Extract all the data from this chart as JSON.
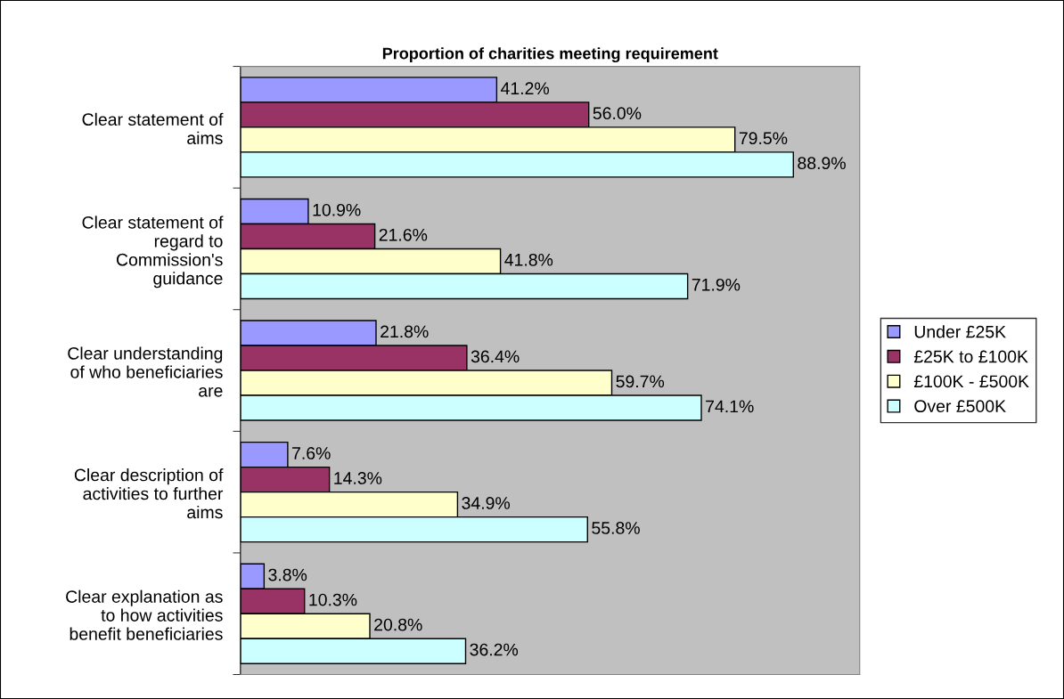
{
  "chart_data": {
    "type": "bar",
    "orientation": "horizontal",
    "title": "Proportion of charities meeting requirement",
    "categories": [
      "Clear statement of\naims",
      "Clear statement of\nregard to\nCommission's\nguidance",
      "Clear understanding\nof who beneficiaries\nare",
      "Clear description of\nactivities to further\naims",
      "Clear explanation as\nto how activities\nbenefit beneficiaries"
    ],
    "series": [
      {
        "name": "Under £25K",
        "color": "#9999ff",
        "values": [
          41.2,
          10.9,
          21.8,
          7.6,
          3.8
        ],
        "value_labels": [
          "41.2%",
          "10.9%",
          "21.8%",
          "7.6%",
          "3.8%"
        ]
      },
      {
        "name": "£25K to £100K",
        "color": "#993366",
        "values": [
          56.0,
          21.6,
          36.4,
          14.3,
          10.3
        ],
        "value_labels": [
          "56.0%",
          "21.6%",
          "36.4%",
          "14.3%",
          "10.3%"
        ]
      },
      {
        "name": "£100K - £500K",
        "color": "#ffffcc",
        "values": [
          79.5,
          41.8,
          59.7,
          34.9,
          20.8
        ],
        "value_labels": [
          "79.5%",
          "41.8%",
          "59.7%",
          "34.9%",
          "20.8%"
        ]
      },
      {
        "name": "Over £500K",
        "color": "#ccffff",
        "values": [
          88.9,
          71.9,
          74.1,
          55.8,
          36.2
        ],
        "value_labels": [
          "88.9%",
          "71.9%",
          "74.1%",
          "55.8%",
          "36.2%"
        ]
      }
    ],
    "legend": "right",
    "grid": false
  }
}
